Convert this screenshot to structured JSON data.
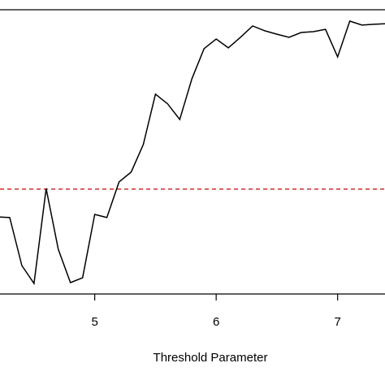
{
  "chart_data": {
    "type": "line",
    "x_label": "Threshold Parameter",
    "x": [
      4.2,
      4.3,
      4.4,
      4.5,
      4.6,
      4.7,
      4.8,
      4.9,
      5.0,
      5.1,
      5.2,
      5.3,
      5.4,
      5.5,
      5.6,
      5.7,
      5.8,
      5.9,
      6.0,
      6.1,
      6.2,
      6.3,
      6.4,
      6.5,
      6.6,
      6.7,
      6.8,
      6.9,
      7.0,
      7.1,
      7.2,
      7.3,
      7.4
    ],
    "series": [
      {
        "color": "#000000",
        "values": [
          0.271,
          0.269,
          0.1,
          0.037,
          0.371,
          0.157,
          0.04,
          0.057,
          0.28,
          0.269,
          0.394,
          0.429,
          0.526,
          0.703,
          0.669,
          0.614,
          0.757,
          0.863,
          0.897,
          0.866,
          0.903,
          0.943,
          0.926,
          0.914,
          0.903,
          0.92,
          0.923,
          0.931,
          0.834,
          0.96,
          0.946,
          0.949,
          0.951
        ]
      }
    ],
    "reference_line": {
      "value": 0.369,
      "color": "#cc0000"
    },
    "xlim": [
      4.22,
      7.39
    ],
    "ylim": [
      0,
      1
    ],
    "xticks": [
      5,
      6,
      7
    ]
  }
}
